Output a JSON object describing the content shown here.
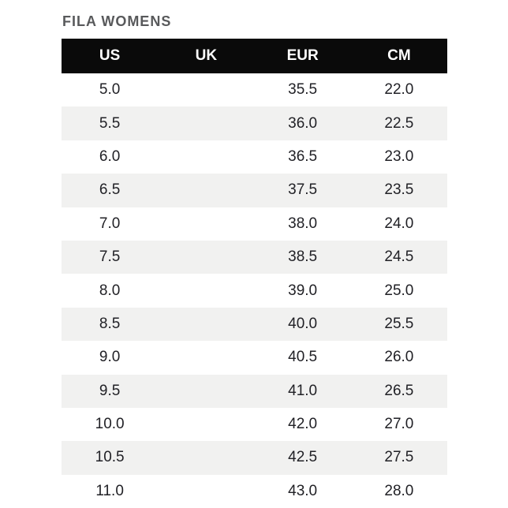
{
  "title": "FILA WOMENS",
  "colors": {
    "header_bg": "#0a0a0a",
    "header_text": "#ffffff",
    "row_bg": "#ffffff",
    "row_alt_bg": "#f1f1f0",
    "cell_text": "#212126",
    "title_text": "#58595b",
    "page_bg": "#ffffff"
  },
  "chart_data": {
    "type": "table",
    "title": "FILA WOMENS",
    "columns": [
      "US",
      "UK",
      "EUR",
      "CM"
    ],
    "rows": [
      [
        "5.0",
        "",
        "35.5",
        "22.0"
      ],
      [
        "5.5",
        "",
        "36.0",
        "22.5"
      ],
      [
        "6.0",
        "",
        "36.5",
        "23.0"
      ],
      [
        "6.5",
        "",
        "37.5",
        "23.5"
      ],
      [
        "7.0",
        "",
        "38.0",
        "24.0"
      ],
      [
        "7.5",
        "",
        "38.5",
        "24.5"
      ],
      [
        "8.0",
        "",
        "39.0",
        "25.0"
      ],
      [
        "8.5",
        "",
        "40.0",
        "25.5"
      ],
      [
        "9.0",
        "",
        "40.5",
        "26.0"
      ],
      [
        "9.5",
        "",
        "41.0",
        "26.5"
      ],
      [
        "10.0",
        "",
        "42.0",
        "27.0"
      ],
      [
        "10.5",
        "",
        "42.5",
        "27.5"
      ],
      [
        "11.0",
        "",
        "43.0",
        "28.0"
      ]
    ]
  }
}
